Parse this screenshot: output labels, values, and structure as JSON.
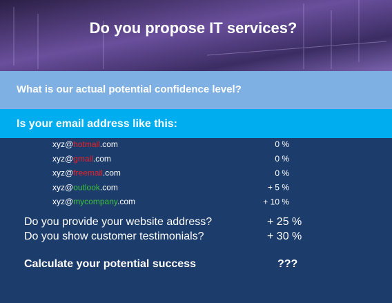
{
  "header": {
    "title": "Do you propose IT services?"
  },
  "question": "What is our actual potential confidence level?",
  "email_heading": "Is your email address like this:",
  "email_rows": [
    {
      "prefix": "xyz@",
      "domain": "hotmail",
      "suffix": ".com",
      "score": "0 %",
      "domain_color": "#e8222a"
    },
    {
      "prefix": "xyz@",
      "domain": "gmail",
      "suffix": ".com",
      "score": "0 %",
      "domain_color": "#e8222a"
    },
    {
      "prefix": "xyz@",
      "domain": "freemail",
      "suffix": ".com",
      "score": "0 %",
      "domain_color": "#e8222a"
    },
    {
      "prefix": "xyz@",
      "domain": "outlook",
      "suffix": ".com",
      "score": "+ 5 %",
      "domain_color": "#3fbf3f"
    },
    {
      "prefix": "xyz@",
      "domain": "mycompany",
      "suffix": ".com",
      "score": "+ 10 %",
      "domain_color": "#3fbf3f"
    }
  ],
  "criteria": [
    {
      "label": "Do you provide your website address?",
      "score": "+ 25 %"
    },
    {
      "label": "Do you show customer testimonials?",
      "score": "+ 30 %"
    }
  ],
  "result": {
    "label": "Calculate your potential success",
    "score": "???"
  }
}
